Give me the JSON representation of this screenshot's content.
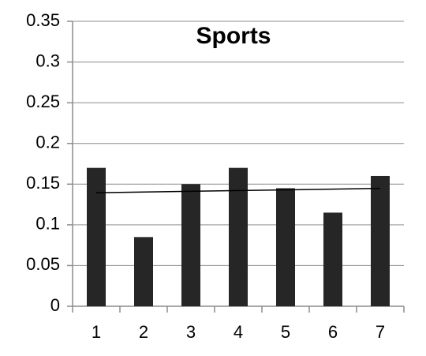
{
  "chart_data": {
    "type": "bar",
    "title": "Sports",
    "categories": [
      "1",
      "2",
      "3",
      "4",
      "5",
      "6",
      "7"
    ],
    "values": [
      0.17,
      0.085,
      0.15,
      0.17,
      0.145,
      0.115,
      0.16
    ],
    "color": "#262626",
    "trend_line": {
      "values": [
        0.1394,
        0.1448
      ],
      "color": "#000000"
    },
    "ylim": [
      0,
      0.35
    ],
    "yticks": [
      0,
      0.05,
      0.1,
      0.15,
      0.2,
      0.25,
      0.3,
      0.35
    ],
    "grid": true
  }
}
